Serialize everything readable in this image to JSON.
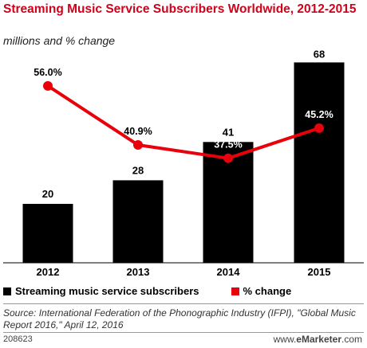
{
  "header": {
    "title": "Streaming Music Service Subscribers Worldwide, 2012-2015",
    "subtitle": "millions and % change"
  },
  "chart_data": {
    "type": "bar",
    "categories": [
      "2012",
      "2013",
      "2014",
      "2015"
    ],
    "series": [
      {
        "name": "Streaming music service subscribers",
        "kind": "bar",
        "values": [
          20,
          28,
          41,
          68
        ],
        "labels": [
          "20",
          "28",
          "41",
          "68"
        ],
        "color": "#000000"
      },
      {
        "name": "% change",
        "kind": "line",
        "values": [
          56.0,
          40.9,
          37.5,
          45.2
        ],
        "labels": [
          "56.0%",
          "40.9%",
          "37.5%",
          "45.2%"
        ],
        "color": "#e8000b"
      }
    ],
    "grid": false
  },
  "legend": {
    "bars_label": "Streaming music service subscribers",
    "line_label": "% change",
    "bars_color": "#000000",
    "line_color": "#e8000b"
  },
  "footer": {
    "source": "Source: International Federation of the Phonographic Industry (IFPI), \"Global Music Report 2016,\" April 12, 2016",
    "chart_id": "208623",
    "brand_prefix": "www.",
    "brand_name": "eMarketer",
    "brand_suffix": ".com"
  }
}
